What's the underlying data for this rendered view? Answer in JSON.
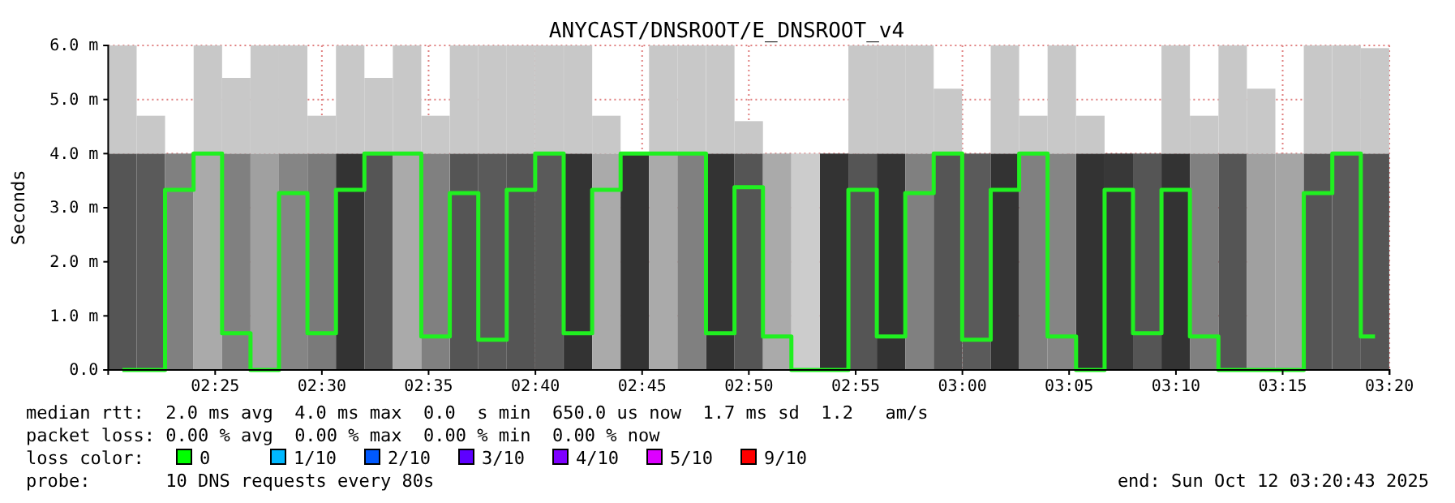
{
  "chart_data": {
    "type": "bar",
    "stacked": true,
    "title": "ANYCAST/DNSROOT/E_DNSROOT_v4",
    "ylabel": "Seconds",
    "x": [
      2.3443,
      2.3665,
      2.3887,
      2.411,
      2.4332,
      2.4554,
      2.4776,
      2.4999,
      2.5221,
      2.5443,
      2.5665,
      2.5887,
      2.611,
      2.6332,
      2.6554,
      2.6776,
      2.6999,
      2.7221,
      2.7443,
      2.7665,
      2.7887,
      2.811,
      2.8332,
      2.8554,
      2.8776,
      2.8999,
      2.9221,
      2.9443,
      2.9665,
      2.9887,
      3.011,
      3.0332,
      3.0554,
      3.0776,
      3.0999,
      3.1221,
      3.1443,
      3.1665,
      3.1887,
      3.211,
      3.2332,
      3.2554,
      3.2776,
      3.2999,
      3.3221
    ],
    "series": [
      {
        "colors": [
          "#555555",
          "#5a5a5a",
          "#808080",
          "#aaaaaa",
          "#808080",
          "#a0a0a0",
          "#858585",
          "#7a7a7a",
          "#333333",
          "#555555",
          "#aaaaaa",
          "#808080",
          "#555555",
          "#5a5a5a",
          "#555555",
          "#5a5a5a",
          "#333333",
          "#aaaaaa",
          "#333333",
          "#aaaaaa",
          "#808080",
          "#333333",
          "#555555",
          "#aaaaaa",
          "#cccccc",
          "#333333",
          "#555555",
          "#333333",
          "#808080",
          "#555555",
          "#5a5a5a",
          "#333333",
          "#808080",
          "#858585",
          "#333333",
          "#383838",
          "#555555",
          "#333333",
          "#808080",
          "#555555",
          "#a0a0a0",
          "#a5a5a5",
          "#555555",
          "#5a5a5a",
          "#555555"
        ],
        "values": [
          4.0,
          4.0,
          4.0,
          4.0,
          4.0,
          4.0,
          4.0,
          4.0,
          4.0,
          4.0,
          4.0,
          4.0,
          4.0,
          4.0,
          4.0,
          4.0,
          4.0,
          4.0,
          4.0,
          4.0,
          4.0,
          4.0,
          4.0,
          4.0,
          4.0,
          4.0,
          4.0,
          4.0,
          4.0,
          4.0,
          4.0,
          4.0,
          4.0,
          4.0,
          4.0,
          4.0,
          4.0,
          4.0,
          4.0,
          4.0,
          4.0,
          4.0,
          4.0,
          4.0,
          4.0
        ]
      },
      {
        "color": "#c8c8c8",
        "values": [
          2.0,
          0.7,
          0,
          2.0,
          1.4,
          2.0,
          2.0,
          0.7,
          2.0,
          1.4,
          2.0,
          0.7,
          2.0,
          2.0,
          2.0,
          2.0,
          2.0,
          0.7,
          0,
          2.0,
          2.0,
          2.0,
          0.6,
          0,
          0,
          0,
          2.0,
          2.0,
          2.0,
          1.2,
          0,
          2.0,
          0.7,
          2.0,
          0.7,
          0,
          0,
          2.0,
          0.7,
          2.0,
          1.2,
          0,
          2.0,
          2.0,
          1.95
        ]
      },
      {
        "type": "step",
        "color": "#20f020",
        "values": [
          0,
          0,
          3.33,
          4.0,
          0.68,
          0,
          3.27,
          0.68,
          3.33,
          4.0,
          4.0,
          0.62,
          3.27,
          0.56,
          3.33,
          4.0,
          0.68,
          3.33,
          4.0,
          4.0,
          4.0,
          0.68,
          3.38,
          0.62,
          0,
          0,
          3.33,
          0.62,
          3.27,
          4.0,
          0.56,
          3.33,
          4.0,
          0.62,
          0,
          3.33,
          0.68,
          3.33,
          0.62,
          0,
          0,
          0,
          3.27,
          4.0,
          0.62
        ]
      }
    ],
    "xlim": [
      2.3332,
      3.3335
    ],
    "xticks": [
      {
        "value": 2.4167,
        "label": "02:25"
      },
      {
        "value": 2.5,
        "label": "02:30"
      },
      {
        "value": 2.5833,
        "label": "02:35"
      },
      {
        "value": 2.6667,
        "label": "02:40"
      },
      {
        "value": 2.75,
        "label": "02:45"
      },
      {
        "value": 2.8333,
        "label": "02:50"
      },
      {
        "value": 2.9167,
        "label": "02:55"
      },
      {
        "value": 3,
        "label": "03:00"
      },
      {
        "value": 3.0833,
        "label": "03:05"
      },
      {
        "value": 3.1667,
        "label": "03:10"
      },
      {
        "value": 3.25,
        "label": "03:15"
      },
      {
        "value": 3.3333,
        "label": "03:20"
      }
    ],
    "ylim": [
      0,
      6.0
    ],
    "yticks": [
      {
        "value": 0,
        "label": "0.0"
      },
      {
        "value": 1,
        "label": "1.0 m"
      },
      {
        "value": 2,
        "label": "2.0 m"
      },
      {
        "value": 3,
        "label": "3.0 m"
      },
      {
        "value": 4,
        "label": "4.0 m"
      },
      {
        "value": 5,
        "label": "5.0 m"
      },
      {
        "value": 6,
        "label": "6.0 m"
      }
    ],
    "grid": true,
    "annotations": [
      "median rtt:  2.0 ms avg  4.0 ms max  0.0  s min  650.0 us now  1.7 ms sd  1.2   am/s",
      "packet loss: 0.00 % avg  0.00 % max  0.00 % min  0.00 % now",
      "loss color:",
      "0",
      "1/10",
      "2/10",
      "3/10",
      "4/10",
      "5/10",
      "9/10",
      "probe:       10 DNS requests every 80s",
      "end: Sun Oct 12 03:20:43 2025"
    ]
  }
}
